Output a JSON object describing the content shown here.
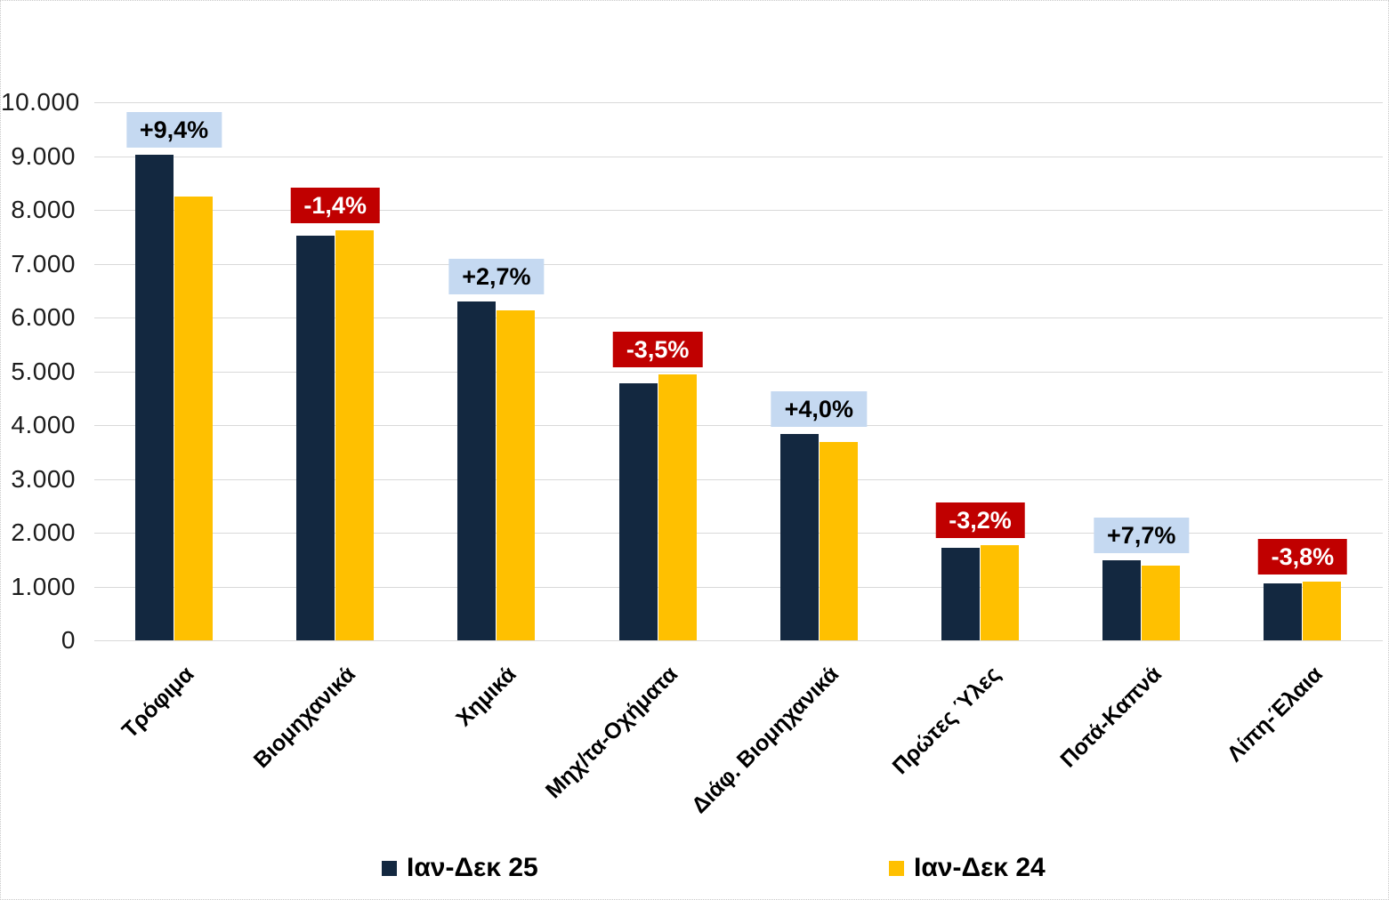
{
  "chart_data": {
    "type": "bar",
    "title": "",
    "categories": [
      "Τρόφιμα",
      "Βιομηχανικά",
      "Χημικά",
      "Μηχ/τα-Οχήματα",
      "Διάφ. Βιομηχανικά",
      "Πρώτες Ύλες",
      "Ποτά-Καπνά",
      "Λίπη-Έλαια"
    ],
    "series": [
      {
        "name": "Ιαν-Δεκ 25",
        "values": [
          9030,
          7515,
          6295,
          4775,
          3835,
          1715,
          1495,
          1050
        ]
      },
      {
        "name": "Ιαν-Δεκ 24",
        "values": [
          8255,
          7625,
          6130,
          4950,
          3688,
          1772,
          1388,
          1092
        ]
      }
    ],
    "change_labels": [
      {
        "text": "+9,4%",
        "direction": "up"
      },
      {
        "text": "-1,4%",
        "direction": "down"
      },
      {
        "text": "+2,7%",
        "direction": "up"
      },
      {
        "text": "-3,5%",
        "direction": "down"
      },
      {
        "text": "+4,0%",
        "direction": "up"
      },
      {
        "text": "-3,2%",
        "direction": "down"
      },
      {
        "text": "+7,7%",
        "direction": "up"
      },
      {
        "text": "-3,8%",
        "direction": "down"
      }
    ],
    "y_axis": {
      "min": 0,
      "max": 10000,
      "step": 1000,
      "tick_labels": [
        "0",
        "1.000",
        "2.000",
        "3.000",
        "4.000",
        "5.000",
        "6.000",
        "7.000",
        "8.000",
        "9.000",
        "10.000"
      ]
    },
    "x_axis": {
      "label_rotation_deg": -45
    },
    "legend_position": "bottom",
    "grid": true,
    "colors": {
      "series_25": "#132840",
      "series_24": "#FFC000",
      "badge_up_bg": "#C5D9F1",
      "badge_up_text": "#000000",
      "badge_down_bg": "#C00000",
      "badge_down_text": "#FFFFFF",
      "gridline": "#D9D9D9"
    }
  }
}
